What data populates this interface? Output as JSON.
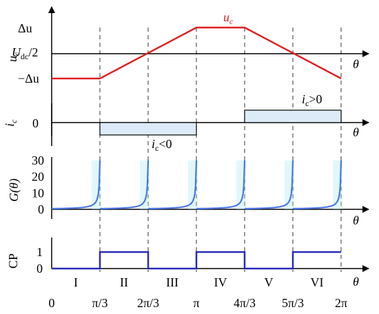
{
  "chart_data": [
    {
      "type": "line",
      "ylabel": "u",
      "ylabel_sub": "c",
      "x_axis_label": "θ",
      "x": [
        "0",
        "π/3",
        "2π/3",
        "π",
        "4π/3",
        "5π/3",
        "2π"
      ],
      "series": [
        {
          "name": "u",
          "name_sub": "c",
          "color": "#e02020",
          "points": [
            [
              0,
              "−Δu"
            ],
            [
              "π/3",
              "−Δu"
            ],
            [
              "π",
              "Δu"
            ],
            [
              "4π/3",
              "Δu"
            ],
            [
              "2π",
              "−Δu"
            ]
          ]
        }
      ],
      "ytick_labels": {
        "top": "Δu",
        "middle_main": "U",
        "middle_sub": "dc",
        "middle_suffix": "/2",
        "bottom": "−Δu"
      }
    },
    {
      "type": "area",
      "ylabel": "i",
      "ylabel_sub": "c",
      "x_axis_label": "θ",
      "ytick_label": "0",
      "regions": [
        {
          "from": "π/3",
          "to": "π",
          "sign": -1,
          "label_main": "i",
          "label_sub": "c",
          "label_rel": "<0"
        },
        {
          "from": "4π/3",
          "to": "2π",
          "sign": 1,
          "label_main": "i",
          "label_sub": "c",
          "label_rel": ">0"
        }
      ],
      "fill_color": "#dcebf7"
    },
    {
      "type": "line",
      "ylabel": "G(θ)",
      "x_axis_label": "θ",
      "yticks": [
        0,
        10,
        20,
        30
      ],
      "ylim": [
        0,
        30
      ],
      "description_of_shape": "rises from ~0.5 to ~30 approaching each multiple of π/3, then resets",
      "color": "#4a78e6",
      "glow_color": "#a8ecf2"
    },
    {
      "type": "line",
      "ylabel": "CP",
      "x_axis_label": "θ",
      "yticks": [
        0,
        1
      ],
      "values": [
        0,
        1,
        0,
        1,
        0,
        1
      ],
      "color": "#2a2ab8"
    }
  ],
  "sectors": [
    "I",
    "II",
    "III",
    "IV",
    "V",
    "VI"
  ],
  "x_tick_labels": [
    "0",
    "π/3",
    "2π/3",
    "π",
    "4π/3",
    "5π/3",
    "2π"
  ]
}
